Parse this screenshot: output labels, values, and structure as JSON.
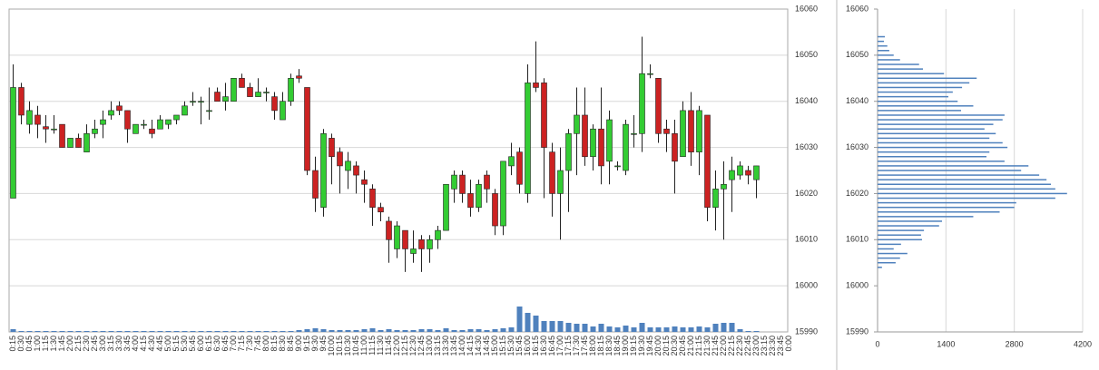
{
  "chart_data": [
    {
      "type": "candlestick",
      "categories": [
        "0:15",
        "0:30",
        "0:45",
        "1:00",
        "1:15",
        "1:30",
        "1:45",
        "2:00",
        "2:15",
        "2:30",
        "2:45",
        "3:00",
        "3:15",
        "3:30",
        "3:45",
        "4:00",
        "4:15",
        "4:30",
        "4:45",
        "5:00",
        "5:15",
        "5:30",
        "5:45",
        "6:00",
        "6:15",
        "6:30",
        "6:45",
        "7:00",
        "7:15",
        "7:30",
        "7:45",
        "8:00",
        "8:15",
        "8:30",
        "8:45",
        "9:00",
        "9:15",
        "9:30",
        "9:45",
        "10:00",
        "10:15",
        "10:30",
        "10:45",
        "11:00",
        "11:15",
        "11:30",
        "11:45",
        "12:00",
        "12:15",
        "12:30",
        "12:45",
        "13:00",
        "13:15",
        "13:30",
        "13:45",
        "14:00",
        "14:15",
        "14:30",
        "14:45",
        "15:00",
        "15:15",
        "15:30",
        "15:45",
        "16:00",
        "16:15",
        "16:30",
        "16:45",
        "17:00",
        "17:15",
        "17:30",
        "17:45",
        "18:00",
        "18:15",
        "18:30",
        "18:45",
        "19:00",
        "19:15",
        "19:30",
        "19:45",
        "20:00",
        "20:15",
        "20:30",
        "20:45",
        "21:00",
        "21:15",
        "21:30",
        "21:45",
        "22:00",
        "22:15",
        "22:30",
        "22:45",
        "23:00",
        "23:15",
        "23:30",
        "23:45",
        "0:00"
      ],
      "open": [
        16019,
        16043,
        16035,
        16037,
        16034.5,
        16034,
        16035,
        16030,
        16032,
        16029,
        16033,
        16035,
        16037,
        16039,
        16038,
        16033,
        16035,
        16034,
        16034,
        16035,
        16036,
        16037,
        16040,
        16040,
        16038,
        16042,
        16040,
        16040,
        16045,
        16043,
        16041,
        16042,
        16041,
        16036,
        16040,
        16045.5,
        16043,
        16025,
        16017,
        16032,
        16029,
        16025,
        16026,
        16023,
        16021,
        16017,
        16014,
        16008,
        16012,
        16007,
        16010,
        16008,
        16010,
        16012,
        16021,
        16024,
        16020,
        16017,
        16024,
        16020,
        16013,
        16026,
        16029,
        16020,
        16044,
        16044,
        16029,
        16020,
        16025,
        16033,
        16037,
        16028,
        16034,
        16027,
        16026,
        16025,
        16033,
        16033,
        16046,
        16045,
        16034,
        16033,
        16028,
        16038,
        16029,
        16037,
        16017,
        16021,
        16023,
        16024,
        16025,
        16023,
        null,
        null,
        null,
        null
      ],
      "high": [
        16048,
        16044,
        16040,
        16039,
        16037,
        16037,
        16035,
        16032,
        16033,
        16035,
        16036,
        16038,
        16040,
        16040,
        16038,
        16035,
        16036,
        16036,
        16037,
        16036,
        16037,
        16040,
        16042,
        16041,
        16043,
        16043,
        16044,
        16045,
        16046,
        16044,
        16045,
        16043,
        16042,
        16042,
        16046,
        16047,
        16043,
        16028,
        16034,
        16033,
        16030,
        16029,
        16027,
        16025,
        16022,
        16018,
        16015,
        16014,
        16012,
        16012,
        16011,
        16011,
        16013,
        16022,
        16025,
        16025,
        16023,
        16023,
        16025,
        16021,
        16027,
        16031,
        16030,
        16048,
        16053,
        16045,
        16031,
        16030,
        16034,
        16043,
        16043,
        16035,
        16043,
        16038,
        16027,
        16036,
        16037,
        16054,
        16048,
        16045,
        16036,
        16036,
        16040,
        16042,
        16039,
        16037,
        16025,
        16027,
        16028,
        16027,
        16026,
        16026,
        null,
        null,
        null,
        null
      ],
      "low": [
        16019,
        16035,
        16033,
        16032,
        16031,
        16033,
        16030,
        16030,
        16030,
        16029,
        16032,
        16032,
        16036,
        16037,
        16031,
        16033,
        16034,
        16032,
        16034,
        16034,
        16035,
        16037,
        16039,
        16035,
        16036,
        16040,
        16038,
        16040,
        16043,
        16041,
        16041,
        16040,
        16036,
        16036,
        16039,
        16044,
        16024,
        16016,
        16015,
        16022,
        16020,
        16021,
        16020,
        16018,
        16013,
        16014,
        16005,
        16006,
        16003,
        16005,
        16003,
        16005,
        16008,
        16012,
        16018,
        16018,
        16015,
        16016,
        16018,
        16011,
        16011,
        16024,
        16020,
        16018,
        16042,
        16019,
        16015,
        16010,
        16016,
        16024,
        16026,
        16025,
        16022,
        16022,
        16025,
        16024,
        16030,
        16029,
        16045,
        16031,
        16029,
        16020,
        16028,
        16026,
        16024,
        16014,
        16012,
        16010,
        16016,
        16023,
        16022,
        16019,
        null,
        null,
        null,
        null
      ],
      "close": [
        16043,
        16037,
        16038,
        16035,
        16034,
        16034,
        16030,
        16032,
        16030,
        16033,
        16034,
        16036,
        16038,
        16038,
        16034,
        16035,
        16035,
        16033,
        16036,
        16036,
        16037,
        16039,
        16040,
        16040,
        16038,
        16040,
        16041,
        16045,
        16043,
        16041,
        16042,
        16042,
        16038,
        16040,
        16045,
        16045,
        16025,
        16019,
        16033,
        16028,
        16026,
        16027,
        16024,
        16022,
        16017,
        16016,
        16010,
        16013,
        16008,
        16008,
        16008,
        16010,
        16012,
        16022,
        16024,
        16020,
        16017,
        16022,
        16021,
        16013,
        16027,
        16028,
        16022,
        16044,
        16043,
        16030,
        16020,
        16025,
        16033,
        16037,
        16028,
        16034,
        16026,
        16036,
        16026,
        16035,
        16033,
        16046,
        16046,
        16033,
        16033,
        16027,
        16038,
        16029,
        16038,
        16017,
        16021,
        16022,
        16025,
        16026,
        16024,
        16026,
        null,
        null,
        null,
        null
      ],
      "volume": [
        3,
        1,
        1,
        1,
        1,
        1,
        1,
        1,
        1,
        1,
        1,
        1,
        1,
        1,
        1,
        1,
        1,
        1,
        1,
        1,
        1,
        1,
        1,
        1,
        1,
        1,
        1,
        1,
        1,
        1,
        1,
        1,
        1,
        1,
        1,
        2,
        3,
        4,
        3,
        2,
        2,
        2,
        2,
        3,
        4,
        2,
        3,
        2,
        2,
        2,
        3,
        3,
        2,
        4,
        2,
        2,
        3,
        3,
        2,
        3,
        4,
        5,
        28,
        21,
        18,
        12,
        12,
        12,
        10,
        9,
        9,
        6,
        9,
        6,
        5,
        7,
        5,
        10,
        5,
        5,
        5,
        6,
        5,
        5,
        6,
        5,
        9,
        10,
        10,
        3,
        1,
        1,
        null,
        null,
        null,
        null
      ],
      "up_color": "#33cc33",
      "down_color": "#cc2222",
      "volume_color": "#4f81bd",
      "ylim": [
        15990,
        16060
      ],
      "yticks": [
        15990,
        16000,
        16010,
        16020,
        16030,
        16040,
        16050,
        16060
      ],
      "grid": true
    },
    {
      "type": "barh",
      "y": [
        16054,
        16053,
        16052,
        16051,
        16050,
        16049,
        16048,
        16047,
        16046,
        16045,
        16044,
        16043,
        16042,
        16041,
        16040,
        16039,
        16038,
        16037,
        16036,
        16035,
        16034,
        16033,
        16032,
        16031,
        16030,
        16029,
        16028,
        16027,
        16026,
        16025,
        16024,
        16023,
        16022,
        16021,
        16020,
        16019,
        16018,
        16017,
        16016,
        16015,
        16014,
        16013,
        16012,
        16011,
        16010,
        16009,
        16008,
        16007,
        16006,
        16005,
        16004
      ],
      "values": [
        150,
        130,
        200,
        240,
        330,
        460,
        850,
        930,
        1360,
        2030,
        1880,
        1730,
        1540,
        1450,
        1640,
        1960,
        1710,
        2600,
        2560,
        2370,
        2190,
        2420,
        2290,
        2560,
        2660,
        2290,
        2230,
        2600,
        3090,
        2940,
        3310,
        3460,
        3550,
        3640,
        3880,
        3640,
        2840,
        2800,
        2500,
        1960,
        1320,
        1260,
        950,
        890,
        910,
        480,
        330,
        610,
        460,
        370,
        90
      ],
      "color": "#4f81bd",
      "xlim": [
        0,
        4200
      ],
      "xticks": [
        0,
        1400,
        2800,
        4200
      ],
      "ylim": [
        15990,
        16060
      ],
      "yticks": [
        15990,
        16000,
        16010,
        16020,
        16030,
        16040,
        16050,
        16060
      ],
      "grid": true
    }
  ]
}
